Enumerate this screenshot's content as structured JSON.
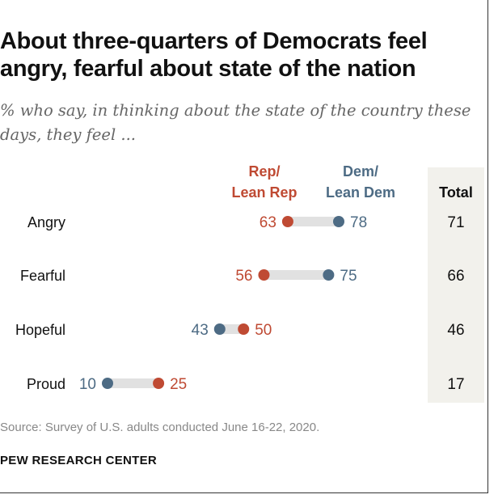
{
  "title": "About three-quarters of Democrats feel angry, fearful about state of the nation",
  "subtitle": "% who say, in thinking about the state of the country these days, they feel ...",
  "source": "Source: Survey of U.S. adults conducted June 16-22, 2020.",
  "org": "PEW RESEARCH CENTER",
  "colors": {
    "rep": "#BF4A33",
    "dem": "#4D6B84",
    "connector": "#E1E1E1",
    "total_bg": "#F2F1EC"
  },
  "chart_data": {
    "type": "dumbbell",
    "categories": [
      "Angry",
      "Fearful",
      "Hopeful",
      "Proud"
    ],
    "series": [
      {
        "name": "Rep/\nLean Rep",
        "name_lines": [
          "Rep/",
          "Lean Rep"
        ],
        "values": [
          63,
          56,
          50,
          25
        ]
      },
      {
        "name": "Dem/\nLean Dem",
        "name_lines": [
          "Dem/",
          "Lean Dem"
        ],
        "values": [
          78,
          75,
          43,
          10
        ]
      }
    ],
    "total": {
      "label": "Total",
      "values": [
        71,
        66,
        46,
        17
      ]
    }
  }
}
